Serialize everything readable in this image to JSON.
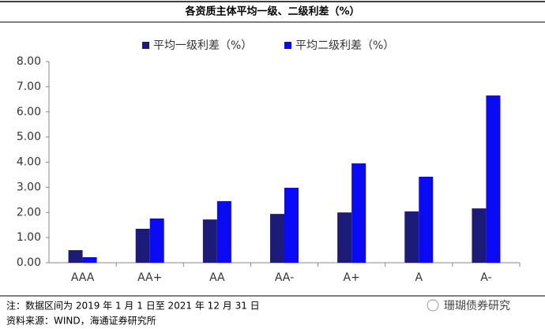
{
  "chart_data": {
    "type": "bar",
    "title": "各资质主体平均一级、二级利差（%）",
    "categories": [
      "AAA",
      "AA+",
      "AA",
      "AA-",
      "A+",
      "A",
      "A-"
    ],
    "series": [
      {
        "name": "平均一级利差（%）",
        "color": "#1c1c78",
        "values": [
          0.5,
          1.35,
          1.72,
          1.94,
          2.0,
          2.04,
          2.16
        ]
      },
      {
        "name": "平均二级利差（%）",
        "color": "#0a0af5",
        "values": [
          0.22,
          1.76,
          2.45,
          2.98,
          3.95,
          3.42,
          6.65
        ]
      }
    ],
    "ylim": [
      0,
      8
    ],
    "yticks": [
      {
        "value": 0,
        "label": "0.00"
      },
      {
        "value": 1,
        "label": "1.00"
      },
      {
        "value": 2,
        "label": "2.00"
      },
      {
        "value": 3,
        "label": "3.00"
      },
      {
        "value": 4,
        "label": "4.00"
      },
      {
        "value": 5,
        "label": "5.00"
      },
      {
        "value": 6,
        "label": "6.00"
      },
      {
        "value": 7,
        "label": "7.00"
      },
      {
        "value": 8,
        "label": "8.00"
      }
    ],
    "grid": false,
    "legend": "top",
    "note": "注：数据区间为 2019 年 1 月 1 日至 2021 年 12 月 31 日",
    "source": "资料来源：WIND，海通证券研究所",
    "watermark": "珊瑚债券研究"
  }
}
